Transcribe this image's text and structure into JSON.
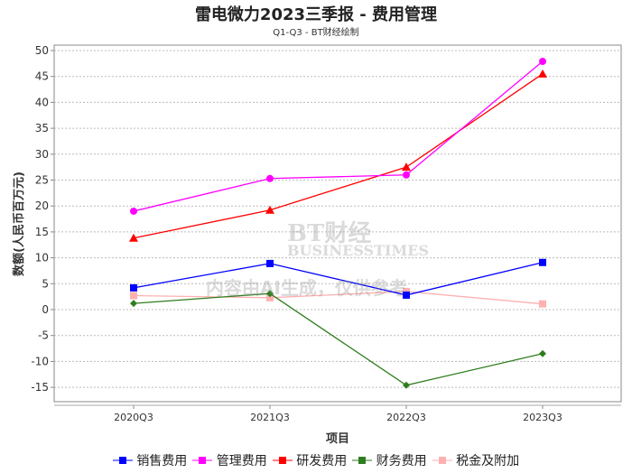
{
  "chart_data": {
    "type": "line",
    "title": "雷电微力2023三季报 - 费用管理",
    "subtitle": "Q1-Q3 - BT财经绘制",
    "xlabel": "项目",
    "ylabel": "数额(人民币百万元)",
    "categories": [
      "2020Q3",
      "2021Q3",
      "2022Q3",
      "2023Q3"
    ],
    "ylim": [
      -18,
      51
    ],
    "yticks": [
      50,
      45,
      40,
      35,
      30,
      25,
      20,
      15,
      10,
      5,
      0,
      -5,
      -10,
      -15
    ],
    "grid": true,
    "legend_position": "bottom",
    "series": [
      {
        "name": "销售费用",
        "color": "#0000ff",
        "marker": "square",
        "values": [
          4.2,
          8.9,
          2.8,
          9.1
        ]
      },
      {
        "name": "管理费用",
        "color": "#ff00ff",
        "marker": "circle",
        "values": [
          19.0,
          25.3,
          26.0,
          47.9
        ]
      },
      {
        "name": "研发费用",
        "color": "#ff0000",
        "marker": "triangle",
        "values": [
          13.8,
          19.2,
          27.5,
          45.5
        ]
      },
      {
        "name": "财务费用",
        "color": "#2e7d1e",
        "marker": "diamond",
        "values": [
          1.2,
          3.1,
          -14.6,
          -8.5
        ]
      },
      {
        "name": "税金及附加",
        "color": "#ffb0b0",
        "marker": "square",
        "values": [
          2.7,
          2.3,
          3.5,
          1.1
        ]
      }
    ]
  },
  "watermark": {
    "brand": "BT财经",
    "brand_en": "BUSINESSTIMES",
    "notice": "内容由AI生成，仅供参考"
  }
}
